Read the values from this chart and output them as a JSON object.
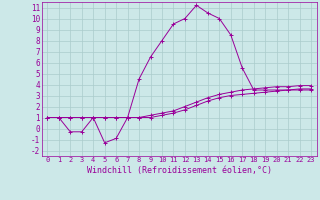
{
  "x": [
    0,
    1,
    2,
    3,
    4,
    5,
    6,
    7,
    8,
    9,
    10,
    11,
    12,
    13,
    14,
    15,
    16,
    17,
    18,
    19,
    20,
    21,
    22,
    23
  ],
  "line1_y": [
    1.0,
    1.0,
    -0.3,
    -0.3,
    1.0,
    -1.3,
    -0.9,
    1.0,
    4.5,
    6.5,
    8.0,
    9.5,
    10.0,
    11.2,
    10.5,
    10.0,
    8.5,
    5.5,
    3.5,
    3.5,
    3.5,
    3.5,
    3.5,
    3.5
  ],
  "line2_y": [
    1.0,
    1.0,
    1.0,
    1.0,
    1.0,
    1.0,
    1.0,
    1.0,
    1.0,
    1.2,
    1.4,
    1.6,
    2.0,
    2.4,
    2.8,
    3.1,
    3.3,
    3.5,
    3.6,
    3.7,
    3.8,
    3.8,
    3.9,
    3.9
  ],
  "line3_y": [
    1.0,
    1.0,
    1.0,
    1.0,
    1.0,
    1.0,
    1.0,
    1.0,
    1.0,
    1.0,
    1.2,
    1.4,
    1.7,
    2.1,
    2.5,
    2.8,
    3.0,
    3.1,
    3.2,
    3.3,
    3.4,
    3.5,
    3.6,
    3.6
  ],
  "line_color": "#990099",
  "bg_color": "#cce8e8",
  "grid_color": "#aacccc",
  "xlabel": "Windchill (Refroidissement éolien,°C)",
  "ylim": [
    -2.5,
    11.5
  ],
  "xlim": [
    -0.5,
    23.5
  ],
  "yticks": [
    -2,
    -1,
    0,
    1,
    2,
    3,
    4,
    5,
    6,
    7,
    8,
    9,
    10,
    11
  ],
  "xticks": [
    0,
    1,
    2,
    3,
    4,
    5,
    6,
    7,
    8,
    9,
    10,
    11,
    12,
    13,
    14,
    15,
    16,
    17,
    18,
    19,
    20,
    21,
    22,
    23
  ]
}
